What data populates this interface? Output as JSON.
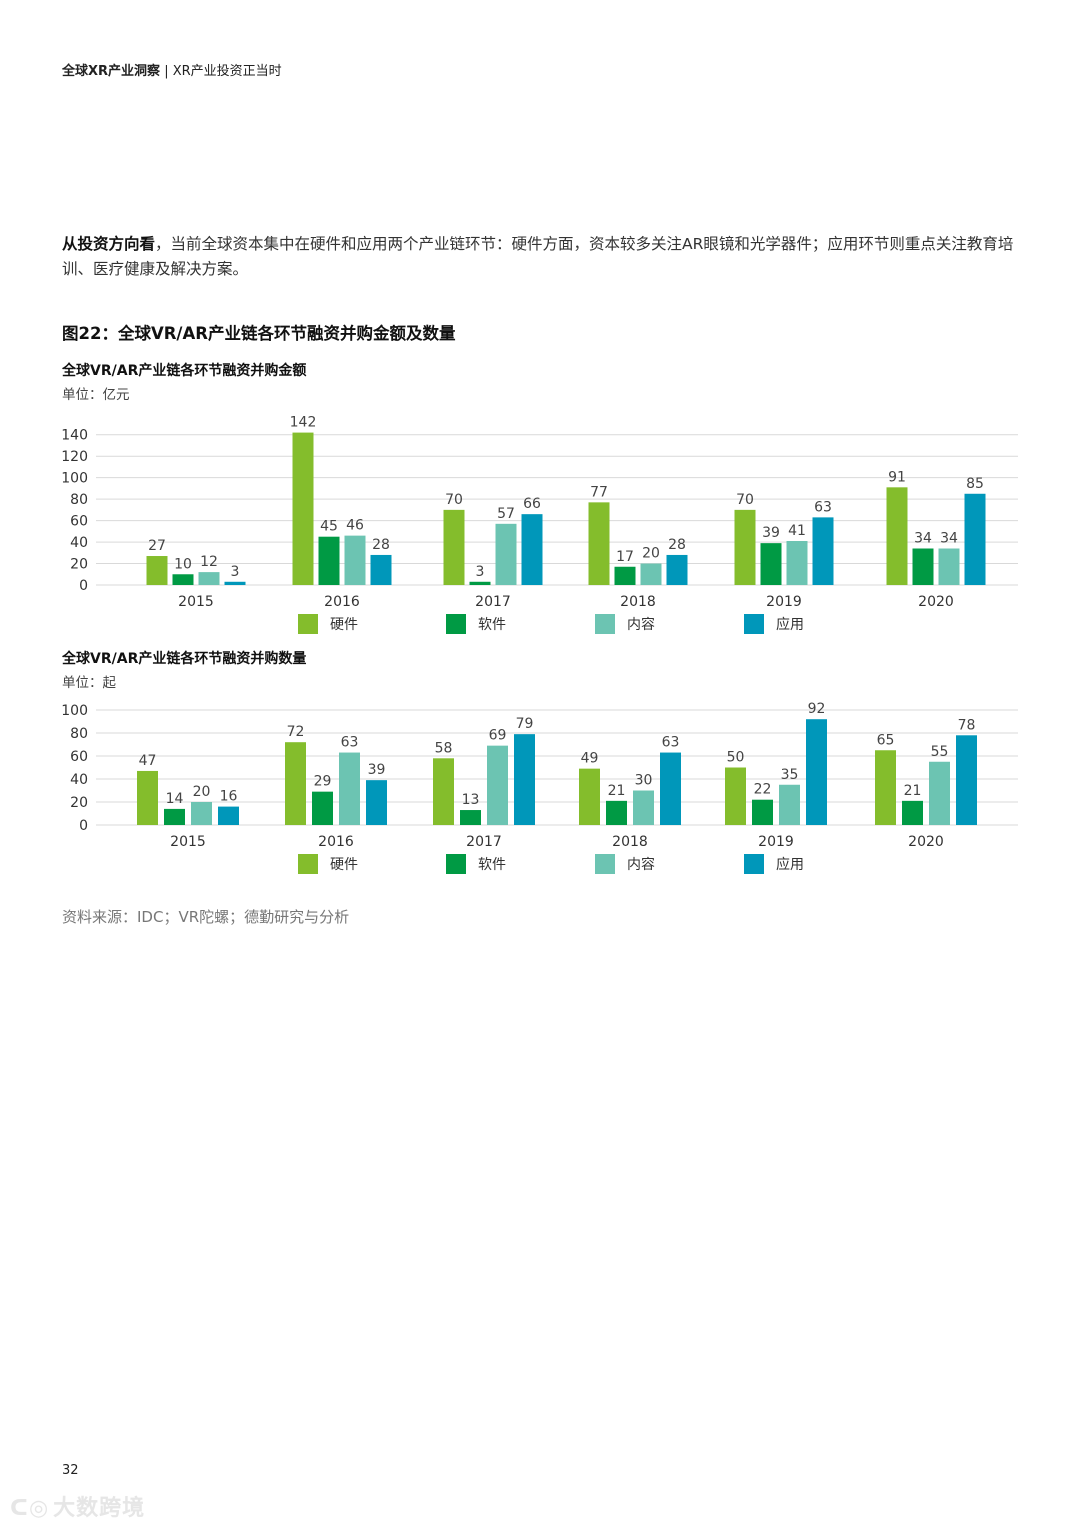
{
  "header": {
    "report_title": "全球XR产业洞察",
    "separator": "|",
    "section_title": "XR产业投资正当时"
  },
  "paragraph": {
    "lead": "从投资方向看",
    "body": "，当前全球资本集中在硬件和应用两个产业链环节：硬件方面，资本较多关注AR眼镜和光学器件；应用环节则重点关注教育培训、医疗健康及解决方案。"
  },
  "figure": {
    "title": "图22：全球VR/AR产业链各环节融资并购金额及数量"
  },
  "colors": {
    "hardware": "#84BD2C",
    "software": "#009A44",
    "content": "#6CC4B2",
    "application": "#0097BA"
  },
  "chart_data": [
    {
      "type": "bar",
      "title": "全球VR/AR产业链各环节融资并购金额",
      "unit": "单位：亿元",
      "categories": [
        "2015",
        "2016",
        "2017",
        "2018",
        "2019",
        "2020"
      ],
      "series": [
        {
          "name": "硬件",
          "values": [
            27,
            142,
            70,
            77,
            70,
            91
          ]
        },
        {
          "name": "软件",
          "values": [
            10,
            45,
            3,
            17,
            39,
            34
          ]
        },
        {
          "name": "内容",
          "values": [
            12,
            46,
            57,
            20,
            41,
            34
          ]
        },
        {
          "name": "应用",
          "values": [
            3,
            28,
            66,
            28,
            63,
            85
          ]
        }
      ],
      "yticks": [
        0,
        20,
        40,
        60,
        80,
        100,
        120,
        140
      ],
      "ylim": [
        0,
        150
      ],
      "grid": true,
      "legend": "bottom"
    },
    {
      "type": "bar",
      "title": "全球VR/AR产业链各环节融资并购数量",
      "unit": "单位：起",
      "categories": [
        "2015",
        "2016",
        "2017",
        "2018",
        "2019",
        "2020"
      ],
      "series": [
        {
          "name": "硬件",
          "values": [
            47,
            72,
            58,
            49,
            50,
            65
          ]
        },
        {
          "name": "软件",
          "values": [
            14,
            29,
            13,
            21,
            22,
            21
          ]
        },
        {
          "name": "内容",
          "values": [
            20,
            63,
            69,
            30,
            35,
            55
          ]
        },
        {
          "name": "应用",
          "values": [
            16,
            39,
            79,
            63,
            92,
            78
          ]
        }
      ],
      "yticks": [
        0,
        20,
        40,
        60,
        80,
        100
      ],
      "ylim": [
        0,
        100
      ],
      "grid": true,
      "legend": "bottom"
    }
  ],
  "source": "资料来源：IDC；VR陀螺；德勤研究与分析",
  "page_number": "32",
  "watermark": "大数跨境"
}
